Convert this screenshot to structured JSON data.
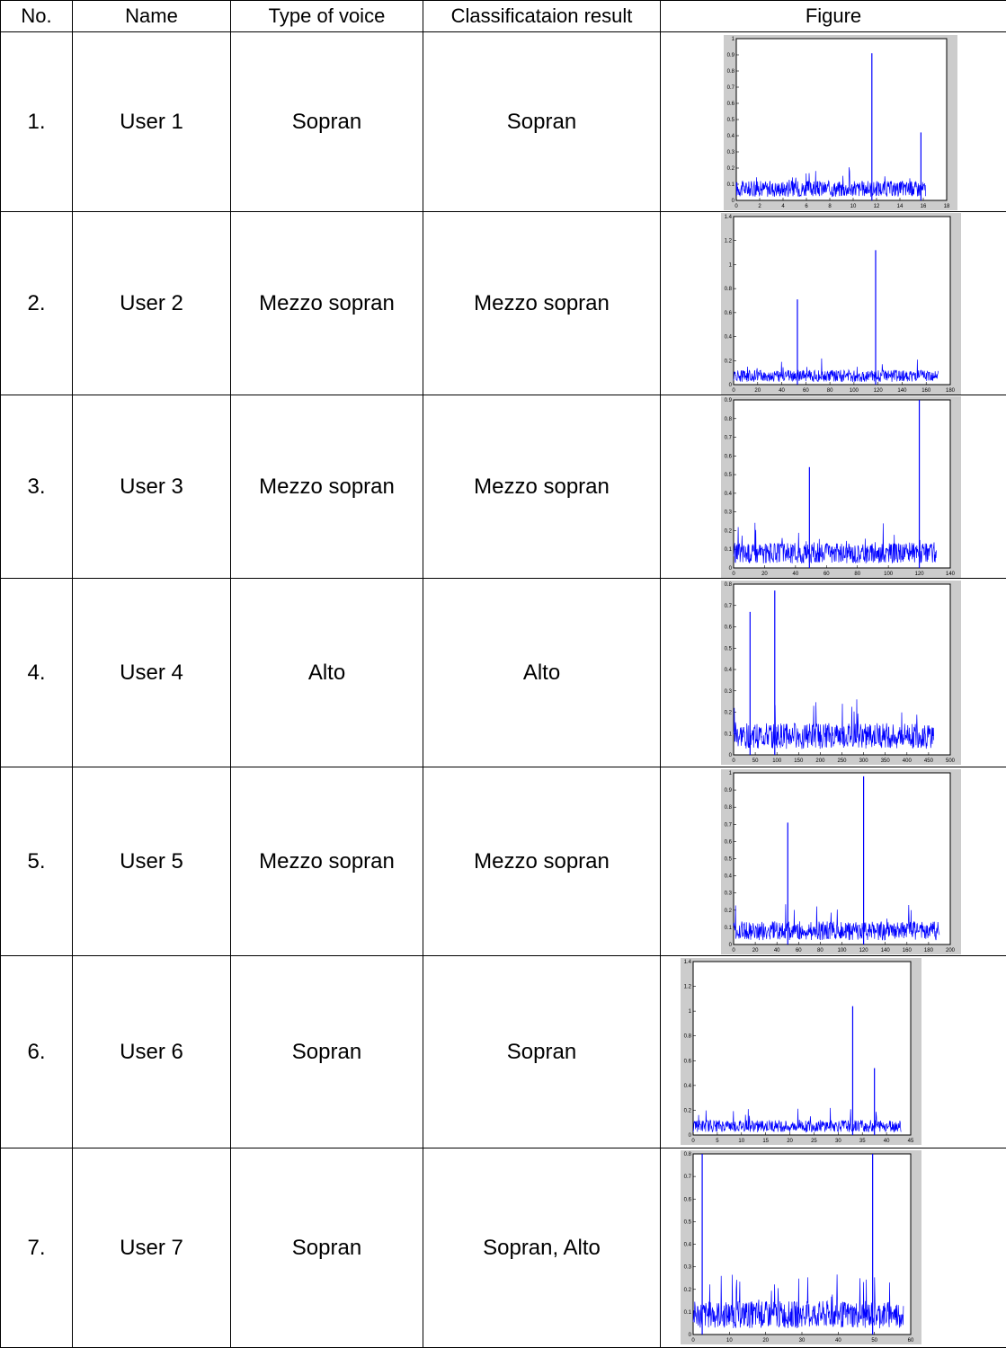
{
  "headers": [
    "No.",
    "Name",
    "Type of voice",
    "Classificataion result",
    "Figure"
  ],
  "rows": [
    {
      "no": "1.",
      "name": "User 1",
      "voice": "Sopran",
      "result": "Sopran",
      "align": "center"
    },
    {
      "no": "2.",
      "name": "User 2",
      "voice": "Mezzo sopran",
      "result": "Mezzo sopran",
      "align": "center"
    },
    {
      "no": "3.",
      "name": "User 3",
      "voice": "Mezzo sopran",
      "result": "Mezzo sopran",
      "align": "center"
    },
    {
      "no": "4.",
      "name": "User 4",
      "voice": "Alto",
      "result": "Alto",
      "align": "center"
    },
    {
      "no": "5.",
      "name": "User 5",
      "voice": "Mezzo sopran",
      "result": "Mezzo sopran",
      "align": "center"
    },
    {
      "no": "6.",
      "name": "User 6",
      "voice": "Sopran",
      "result": "Sopran",
      "align": "left"
    },
    {
      "no": "7.",
      "name": "User 7",
      "voice": "Sopran",
      "result": "Sopran, Alto",
      "align": "left"
    }
  ],
  "chart_data": [
    {
      "type": "line",
      "series_color": "#0000ff",
      "xlim": [
        0,
        18
      ],
      "ylim": [
        0,
        1
      ],
      "xticks": [
        "0",
        "2",
        "4",
        "6",
        "8",
        "10",
        "12",
        "14",
        "16",
        "18"
      ],
      "yticks": [
        "0",
        "0.1",
        "0.2",
        "0.3",
        "0.4",
        "0.5",
        "0.6",
        "0.7",
        "0.8",
        "0.9",
        "1"
      ],
      "x_end": 16.2,
      "noise_level": 0.09,
      "spikes": [
        [
          11.6,
          0.91
        ],
        [
          15.8,
          0.42
        ]
      ]
    },
    {
      "type": "line",
      "series_color": "#0000ff",
      "xlim": [
        0,
        180
      ],
      "ylim": [
        0,
        1.4
      ],
      "xticks": [
        "0",
        "20",
        "40",
        "60",
        "80",
        "100",
        "120",
        "140",
        "160",
        "180"
      ],
      "yticks": [
        "0",
        "0.2",
        "0.4",
        "0.6",
        "0.8",
        "1",
        "1.2",
        "1.4"
      ],
      "x_end": 170,
      "noise_level": 0.09,
      "spikes": [
        [
          53,
          0.71
        ],
        [
          118,
          1.12
        ]
      ]
    },
    {
      "type": "line",
      "series_color": "#0000ff",
      "xlim": [
        0,
        140
      ],
      "ylim": [
        0,
        0.9
      ],
      "xticks": [
        "0",
        "20",
        "40",
        "60",
        "80",
        "100",
        "120",
        "140"
      ],
      "yticks": [
        "0",
        "0.1",
        "0.2",
        "0.3",
        "0.4",
        "0.5",
        "0.6",
        "0.7",
        "0.8",
        "0.9"
      ],
      "x_end": 131,
      "noise_level": 0.1,
      "spikes": [
        [
          49,
          0.54
        ],
        [
          120,
          0.9
        ]
      ]
    },
    {
      "type": "line",
      "series_color": "#0000ff",
      "xlim": [
        0,
        500
      ],
      "ylim": [
        0,
        0.8
      ],
      "xticks": [
        "0",
        "50",
        "100",
        "150",
        "200",
        "250",
        "300",
        "350",
        "400",
        "450",
        "500"
      ],
      "yticks": [
        "0",
        "0.1",
        "0.2",
        "0.3",
        "0.4",
        "0.5",
        "0.6",
        "0.7",
        "0.8"
      ],
      "x_end": 462,
      "noise_level": 0.11,
      "spikes": [
        [
          38,
          0.67
        ],
        [
          95,
          0.77
        ]
      ]
    },
    {
      "type": "line",
      "series_color": "#0000ff",
      "xlim": [
        0,
        200
      ],
      "ylim": [
        0,
        1
      ],
      "xticks": [
        "0",
        "20",
        "40",
        "60",
        "80",
        "100",
        "120",
        "140",
        "160",
        "180",
        "200"
      ],
      "yticks": [
        "0",
        "0.1",
        "0.2",
        "0.3",
        "0.4",
        "0.5",
        "0.6",
        "0.7",
        "0.8",
        "0.9",
        "1"
      ],
      "x_end": 190,
      "noise_level": 0.1,
      "spikes": [
        [
          50,
          0.71
        ],
        [
          120,
          0.98
        ]
      ]
    },
    {
      "type": "line",
      "series_color": "#0000ff",
      "xlim": [
        0,
        45
      ],
      "ylim": [
        0,
        1.4
      ],
      "xticks": [
        "0",
        "5",
        "10",
        "15",
        "20",
        "25",
        "30",
        "35",
        "40",
        "45"
      ],
      "yticks": [
        "0",
        "0.2",
        "0.4",
        "0.6",
        "0.8",
        "1",
        "1.2",
        "1.4"
      ],
      "x_end": 43,
      "noise_level": 0.09,
      "spikes": [
        [
          33,
          1.04
        ],
        [
          37.5,
          0.54
        ]
      ]
    },
    {
      "type": "line",
      "series_color": "#0000ff",
      "xlim": [
        0,
        60
      ],
      "ylim": [
        0,
        0.8
      ],
      "xticks": [
        "0",
        "10",
        "20",
        "30",
        "40",
        "50",
        "60"
      ],
      "yticks": [
        "0",
        "0.1",
        "0.2",
        "0.3",
        "0.4",
        "0.5",
        "0.6",
        "0.7",
        "0.8"
      ],
      "x_end": 58,
      "noise_level": 0.11,
      "spikes": [
        [
          2.5,
          0.8
        ],
        [
          49.5,
          0.8
        ]
      ]
    }
  ]
}
